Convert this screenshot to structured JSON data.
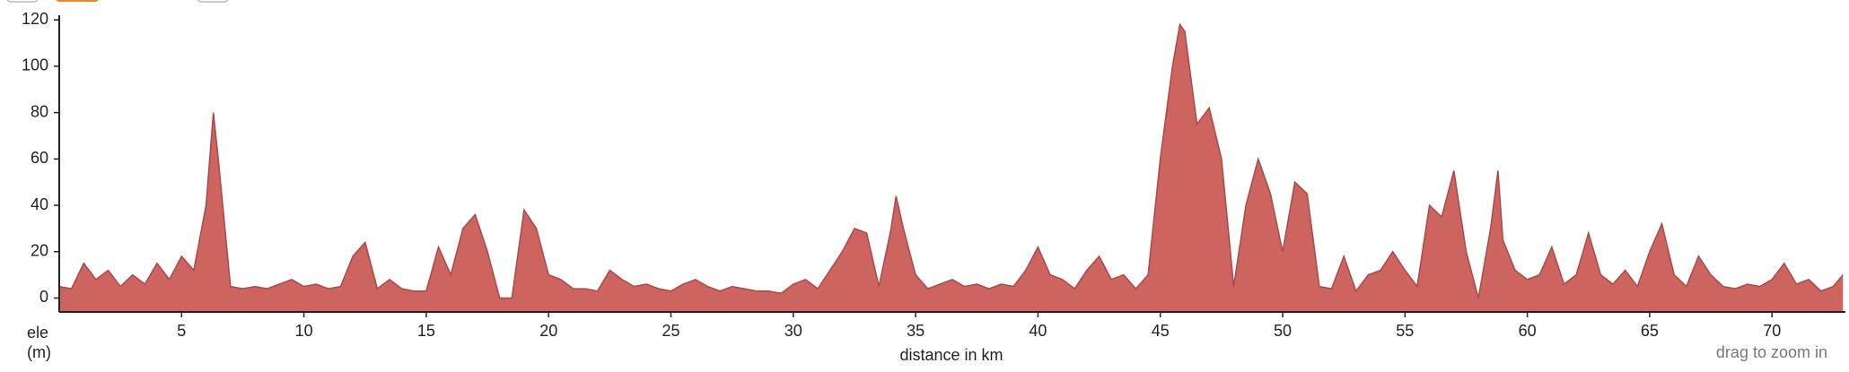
{
  "chart_data": {
    "type": "area",
    "y_label": [
      "ele",
      "(m)"
    ],
    "x_label": "distance in km",
    "annotation": "drag to zoom in",
    "color": "#cd6460",
    "edge_color": "#a8494a",
    "xlim": [
      0,
      73
    ],
    "ylim": [
      -6,
      122
    ],
    "xticks": [
      5,
      10,
      15,
      20,
      25,
      30,
      35,
      40,
      45,
      50,
      55,
      60,
      65,
      70
    ],
    "yticks": [
      0,
      20,
      40,
      60,
      80,
      100,
      120
    ],
    "x": [
      0,
      0.5,
      1,
      1.5,
      2,
      2.5,
      3,
      3.5,
      4,
      4.5,
      5,
      5.5,
      6,
      6.3,
      6.5,
      7,
      7.5,
      8,
      8.5,
      9,
      9.5,
      10,
      10.5,
      11,
      11.5,
      12,
      12.5,
      13,
      13.5,
      14,
      14.5,
      15,
      15.5,
      16,
      16.5,
      17,
      17.5,
      18,
      18.5,
      19,
      19.5,
      20,
      20.5,
      21,
      21.5,
      22,
      22.5,
      23,
      23.5,
      24,
      24.5,
      25,
      25.5,
      26,
      26.5,
      27,
      27.5,
      28,
      28.5,
      29,
      29.5,
      30,
      30.5,
      31,
      31.5,
      32,
      32.5,
      33,
      33.5,
      34,
      34.2,
      34.5,
      35,
      35.5,
      36,
      36.5,
      37,
      37.5,
      38,
      38.5,
      39,
      39.5,
      40,
      40.5,
      41,
      41.5,
      42,
      42.5,
      43,
      43.5,
      44,
      44.5,
      45,
      45.5,
      45.8,
      46,
      46.5,
      47,
      47.5,
      48,
      48.5,
      49,
      49.5,
      50,
      50.5,
      51,
      51.5,
      52,
      52.5,
      53,
      53.5,
      54,
      54.5,
      55,
      55.5,
      56,
      56.5,
      57,
      57.5,
      58,
      58.5,
      58.8,
      59,
      59.5,
      60,
      60.5,
      61,
      61.5,
      62,
      62.5,
      63,
      63.5,
      64,
      64.5,
      65,
      65.5,
      66,
      66.5,
      67,
      67.5,
      68,
      68.5,
      69,
      69.5,
      70,
      70.5,
      71,
      71.5,
      72,
      72.5,
      72.9
    ],
    "values": [
      5,
      4,
      15,
      8,
      12,
      5,
      10,
      6,
      15,
      8,
      18,
      12,
      40,
      80,
      60,
      5,
      4,
      5,
      4,
      6,
      8,
      5,
      6,
      4,
      5,
      18,
      24,
      4,
      8,
      4,
      3,
      3,
      22,
      10,
      30,
      36,
      20,
      0,
      0,
      38,
      30,
      10,
      8,
      4,
      4,
      3,
      12,
      8,
      5,
      6,
      4,
      3,
      6,
      8,
      5,
      3,
      5,
      4,
      3,
      3,
      2,
      6,
      8,
      4,
      12,
      20,
      30,
      28,
      5,
      30,
      44,
      30,
      10,
      4,
      6,
      8,
      5,
      6,
      4,
      6,
      5,
      12,
      22,
      10,
      8,
      4,
      12,
      18,
      8,
      10,
      4,
      10,
      60,
      100,
      118,
      115,
      75,
      82,
      60,
      5,
      40,
      60,
      45,
      20,
      50,
      45,
      5,
      4,
      18,
      3,
      10,
      12,
      20,
      12,
      5,
      40,
      35,
      55,
      20,
      0,
      30,
      55,
      25,
      12,
      8,
      10,
      22,
      6,
      10,
      28,
      10,
      6,
      12,
      5,
      20,
      32,
      10,
      5,
      18,
      10,
      5,
      4,
      6,
      5,
      8,
      15,
      6,
      8,
      3,
      5,
      10
    ]
  }
}
